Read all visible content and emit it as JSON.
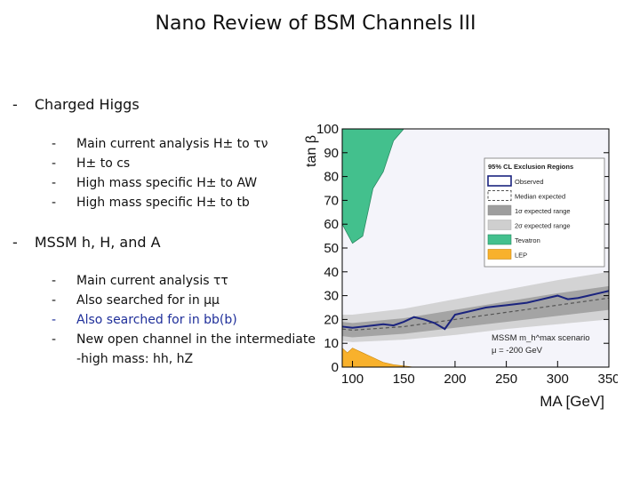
{
  "slide": {
    "title": "Nano Review of BSM Channels III",
    "sections": [
      {
        "heading": "Charged Higgs",
        "items": [
          "Main current analysis H± to τν",
          "H± to cs",
          "High mass specific H± to AW",
          "High mass specific H± to tb"
        ]
      },
      {
        "heading": "MSSM h, H, and A",
        "items": [
          "Main current analysis ττ",
          "Also searched for in μμ",
          "Also searched for in bb(b)",
          "New open channel in the intermediate"
        ],
        "continuation": "-high mass: hh, hZ"
      }
    ],
    "bullet": "-"
  },
  "chart_data": {
    "type": "area",
    "ylabel": "tan β",
    "xlabel": "MA [GeV]",
    "xlim": [
      90,
      350
    ],
    "ylim": [
      0,
      100
    ],
    "x_ticks": [
      "100",
      "150",
      "200",
      "250",
      "300",
      "350"
    ],
    "y_ticks": [
      "0",
      "10",
      "20",
      "30",
      "40",
      "50",
      "60",
      "70",
      "80",
      "90",
      "100"
    ],
    "legend": {
      "title": "95% CL Exclusion Regions",
      "placement": "top-right",
      "entries": [
        "Observed",
        "Median expected",
        "1σ expected range",
        "2σ expected range",
        "Tevatron",
        "LEP"
      ]
    },
    "annotations": [
      "MSSM m_h^max scenario",
      "μ = -200 GeV"
    ],
    "series": [
      {
        "name": "Observed",
        "x": [
          90,
          100,
          110,
          120,
          130,
          140,
          150,
          160,
          170,
          180,
          190,
          200,
          210,
          220,
          230,
          240,
          250,
          260,
          270,
          280,
          290,
          300,
          310,
          320,
          330,
          340,
          350
        ],
        "values": [
          17,
          16.5,
          17,
          17.5,
          18,
          17.5,
          19,
          21,
          20,
          18.5,
          16,
          22,
          23,
          24,
          25,
          25.5,
          26,
          26.5,
          27,
          28,
          29,
          30,
          28.5,
          29,
          30,
          31,
          32
        ]
      },
      {
        "name": "Median expected",
        "x": [
          90,
          100,
          150,
          200,
          250,
          300,
          350
        ],
        "values": [
          16,
          15.5,
          17,
          20,
          23,
          26,
          29
        ]
      },
      {
        "name": "1σ expected range",
        "x": [
          90,
          100,
          150,
          200,
          250,
          300,
          350
        ],
        "lower": [
          13,
          12.5,
          14,
          16.5,
          19,
          21.5,
          24
        ],
        "upper": [
          19,
          18.5,
          20.5,
          24,
          27.5,
          31,
          34
        ]
      },
      {
        "name": "2σ expected range",
        "x": [
          90,
          100,
          150,
          200,
          250,
          300,
          350
        ],
        "lower": [
          11,
          10.5,
          11.5,
          13.5,
          16,
          18,
          20
        ],
        "upper": [
          22,
          22,
          24.5,
          28.5,
          32.5,
          36.5,
          40
        ]
      },
      {
        "name": "Tevatron",
        "x": [
          90,
          100,
          110,
          120,
          130,
          140,
          150,
          160,
          170,
          180,
          190,
          200,
          210,
          220,
          230
        ],
        "values": [
          60,
          52,
          55,
          75,
          82,
          95,
          100,
          100,
          100,
          100,
          100,
          100,
          100,
          100,
          100
        ]
      },
      {
        "name": "LEP",
        "x": [
          90,
          95,
          100,
          105,
          110,
          115,
          120,
          125,
          130,
          140,
          150,
          160
        ],
        "values": [
          8,
          6,
          8,
          7,
          6,
          5,
          4,
          3,
          2,
          1,
          0.5,
          0
        ]
      }
    ],
    "colors": {
      "tevatron": "#43c08d",
      "lep": "#f8b12c",
      "observed": "#1a237e",
      "band_1sigma": "#9e9e9e",
      "band_2sigma": "#cfcfcf",
      "blue_text": "#1f2f9a"
    },
    "grid": false
  }
}
